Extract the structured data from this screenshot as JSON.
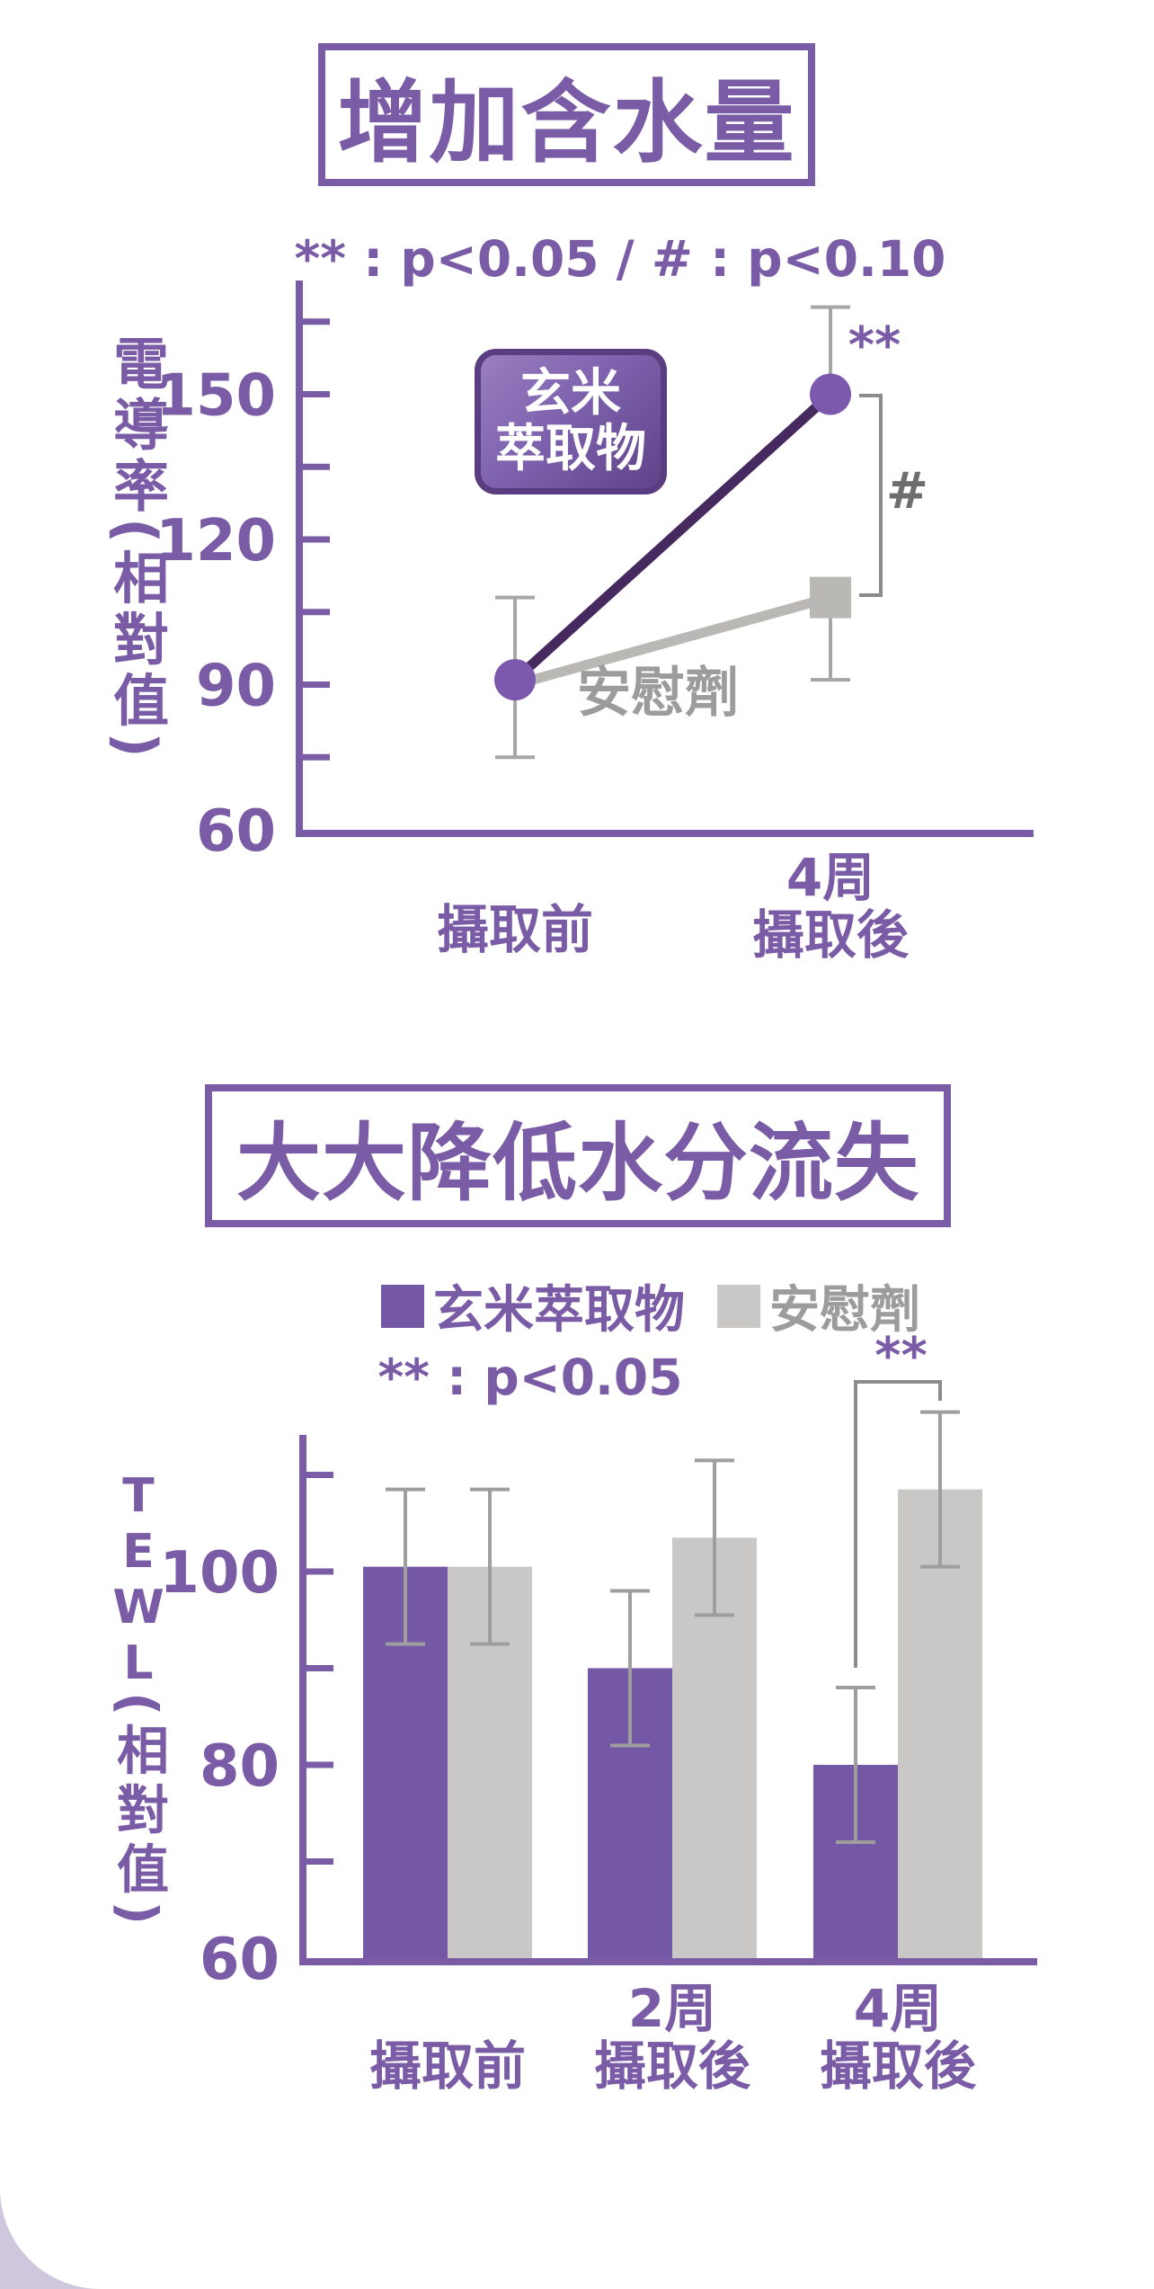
{
  "palette": {
    "purple": "#7A5BA6",
    "line_purple": "#46295F",
    "marker_purple": "#7C59AC",
    "bar_purple": "#7457A5",
    "gray": "#B9B8B5",
    "bar_gray": "#C9C8C6",
    "text_gray": "#9C9C9C",
    "error_gray": "#A6A6A6",
    "bracket_gray": "#8B8B8B",
    "hash_gray": "#6E6E6E",
    "lavender": "#CEC7DE"
  },
  "chart_data": [
    {
      "type": "line",
      "title": "增加含水量",
      "annotation": "** : p<0.05 /  # : p<0.10",
      "ylabel": "電導率(相對值)",
      "categories": [
        "攝取前",
        "4周\n攝取後"
      ],
      "ylim": [
        60,
        173
      ],
      "yticks_labeled": [
        60,
        90,
        120,
        150
      ],
      "ytick_minor_step": 15,
      "grid": false,
      "series": [
        {
          "name": "安慰劑",
          "color": "#B9B8B5",
          "marker": "square",
          "marker_color": "#B9B8B5",
          "show_marker": [
            false,
            true
          ],
          "points": [
            {
              "value": 90,
              "err_up": null,
              "err_down": null
            },
            {
              "value": 108,
              "err_up": null,
              "err_down": 17
            }
          ]
        },
        {
          "name": "玄米萃取物",
          "color": "#46295F",
          "marker": "circle",
          "marker_color": "#7C59AC",
          "show_marker": [
            true,
            true
          ],
          "points": [
            {
              "value": 91,
              "err_up": 17,
              "err_down": 16
            },
            {
              "value": 150,
              "err_up": 18,
              "err_down": null
            }
          ]
        }
      ],
      "series_label_box": "玄米\n萃取物",
      "series_label_gray": "安慰劑",
      "significance": {
        "point_label": "**",
        "bracket_label": "#"
      }
    },
    {
      "type": "bar",
      "title": "大大降低水分流失",
      "annotation": "** : p<0.05",
      "ylabel_latin": "TEWL",
      "ylabel_cjk": "(相對值)",
      "categories": [
        "攝取前",
        "2周\n攝取後",
        "4周\n攝取後"
      ],
      "ylim": [
        60,
        114
      ],
      "yticks_labeled": [
        60,
        80,
        100
      ],
      "ytick_minor_step": 10,
      "grid": false,
      "legend": [
        {
          "label": "玄米萃取物",
          "color": "#7457A5",
          "text_color": "#7A5BA6"
        },
        {
          "label": "安慰劑",
          "color": "#C9C8C6",
          "text_color": "#9C9C9C"
        }
      ],
      "series": [
        {
          "name": "玄米萃取物",
          "color": "#7457A5",
          "values": [
            100.5,
            90,
            80
          ],
          "errors": [
            8,
            8,
            8
          ]
        },
        {
          "name": "安慰劑",
          "color": "#C9C8C6",
          "values": [
            100.5,
            103.5,
            108.5
          ],
          "errors": [
            8,
            8,
            8
          ]
        }
      ],
      "significance": {
        "bracket_label": "**",
        "group_index": 2
      }
    }
  ]
}
